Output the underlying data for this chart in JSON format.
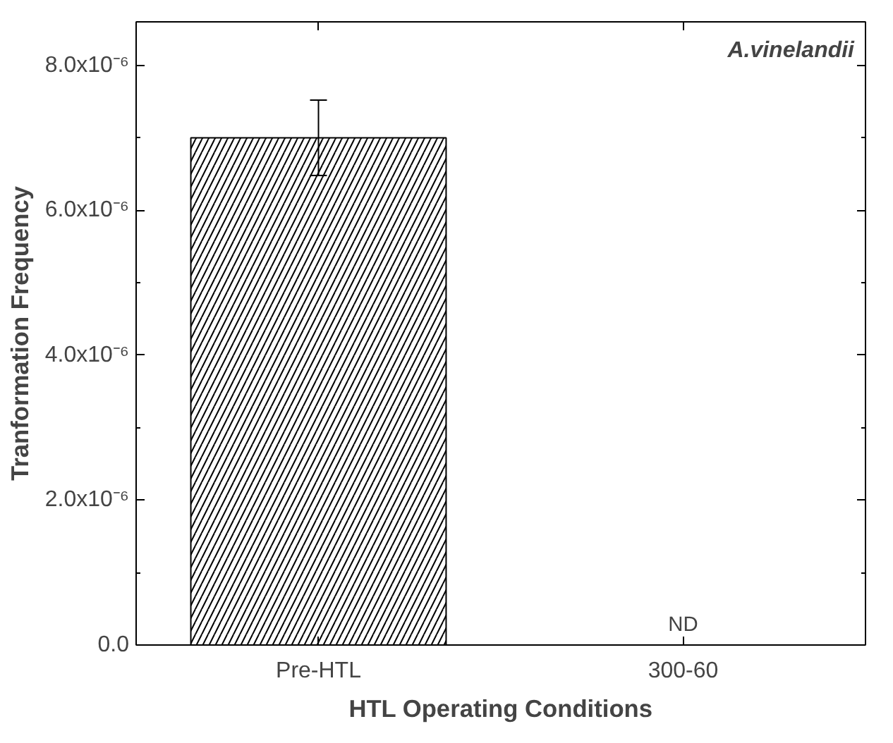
{
  "chart_data": {
    "type": "bar",
    "xlabel": "HTL Operating Conditions",
    "ylabel": "Tranformation Frequency",
    "categories": [
      "Pre-HTL",
      "300-60"
    ],
    "values": [
      7e-06,
      null
    ],
    "errors": [
      5.2e-07,
      null
    ],
    "color": "#ffffff",
    "ylim": [
      0,
      8.6e-06
    ],
    "yticks": [
      {
        "value": 0,
        "label": "0.0"
      },
      {
        "value": 2e-06,
        "label": "2.0x10⁻⁶"
      },
      {
        "value": 4e-06,
        "label": "4.0x10⁻⁶"
      },
      {
        "value": 6e-06,
        "label": "6.0x10⁻⁶"
      },
      {
        "value": 8e-06,
        "label": "8.0x10⁻⁶"
      }
    ],
    "annotations": [
      "ND",
      "A.vinelandii"
    ],
    "grid": false
  }
}
